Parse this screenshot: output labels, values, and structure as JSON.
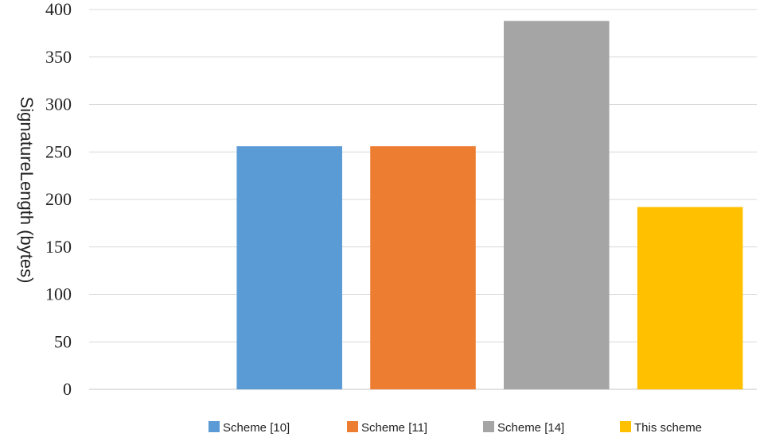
{
  "chart_data": {
    "type": "bar",
    "title": "",
    "xlabel": "",
    "ylabel": "SignatureLength (bytes)",
    "ylim": [
      0,
      400
    ],
    "yticks": [
      0,
      50,
      100,
      150,
      200,
      250,
      300,
      350,
      400
    ],
    "grid": true,
    "legend_position": "bottom",
    "x_tick_labels_visible": false,
    "categories": [
      "Scheme [10]",
      "Scheme [11]",
      "Scheme [14]",
      "This scheme"
    ],
    "values": [
      256,
      256,
      388,
      192
    ],
    "colors": [
      "#5B9BD5",
      "#ED7D31",
      "#A5A5A5",
      "#FFC000"
    ]
  },
  "style": {
    "grid_color": "#d9d9d9"
  }
}
